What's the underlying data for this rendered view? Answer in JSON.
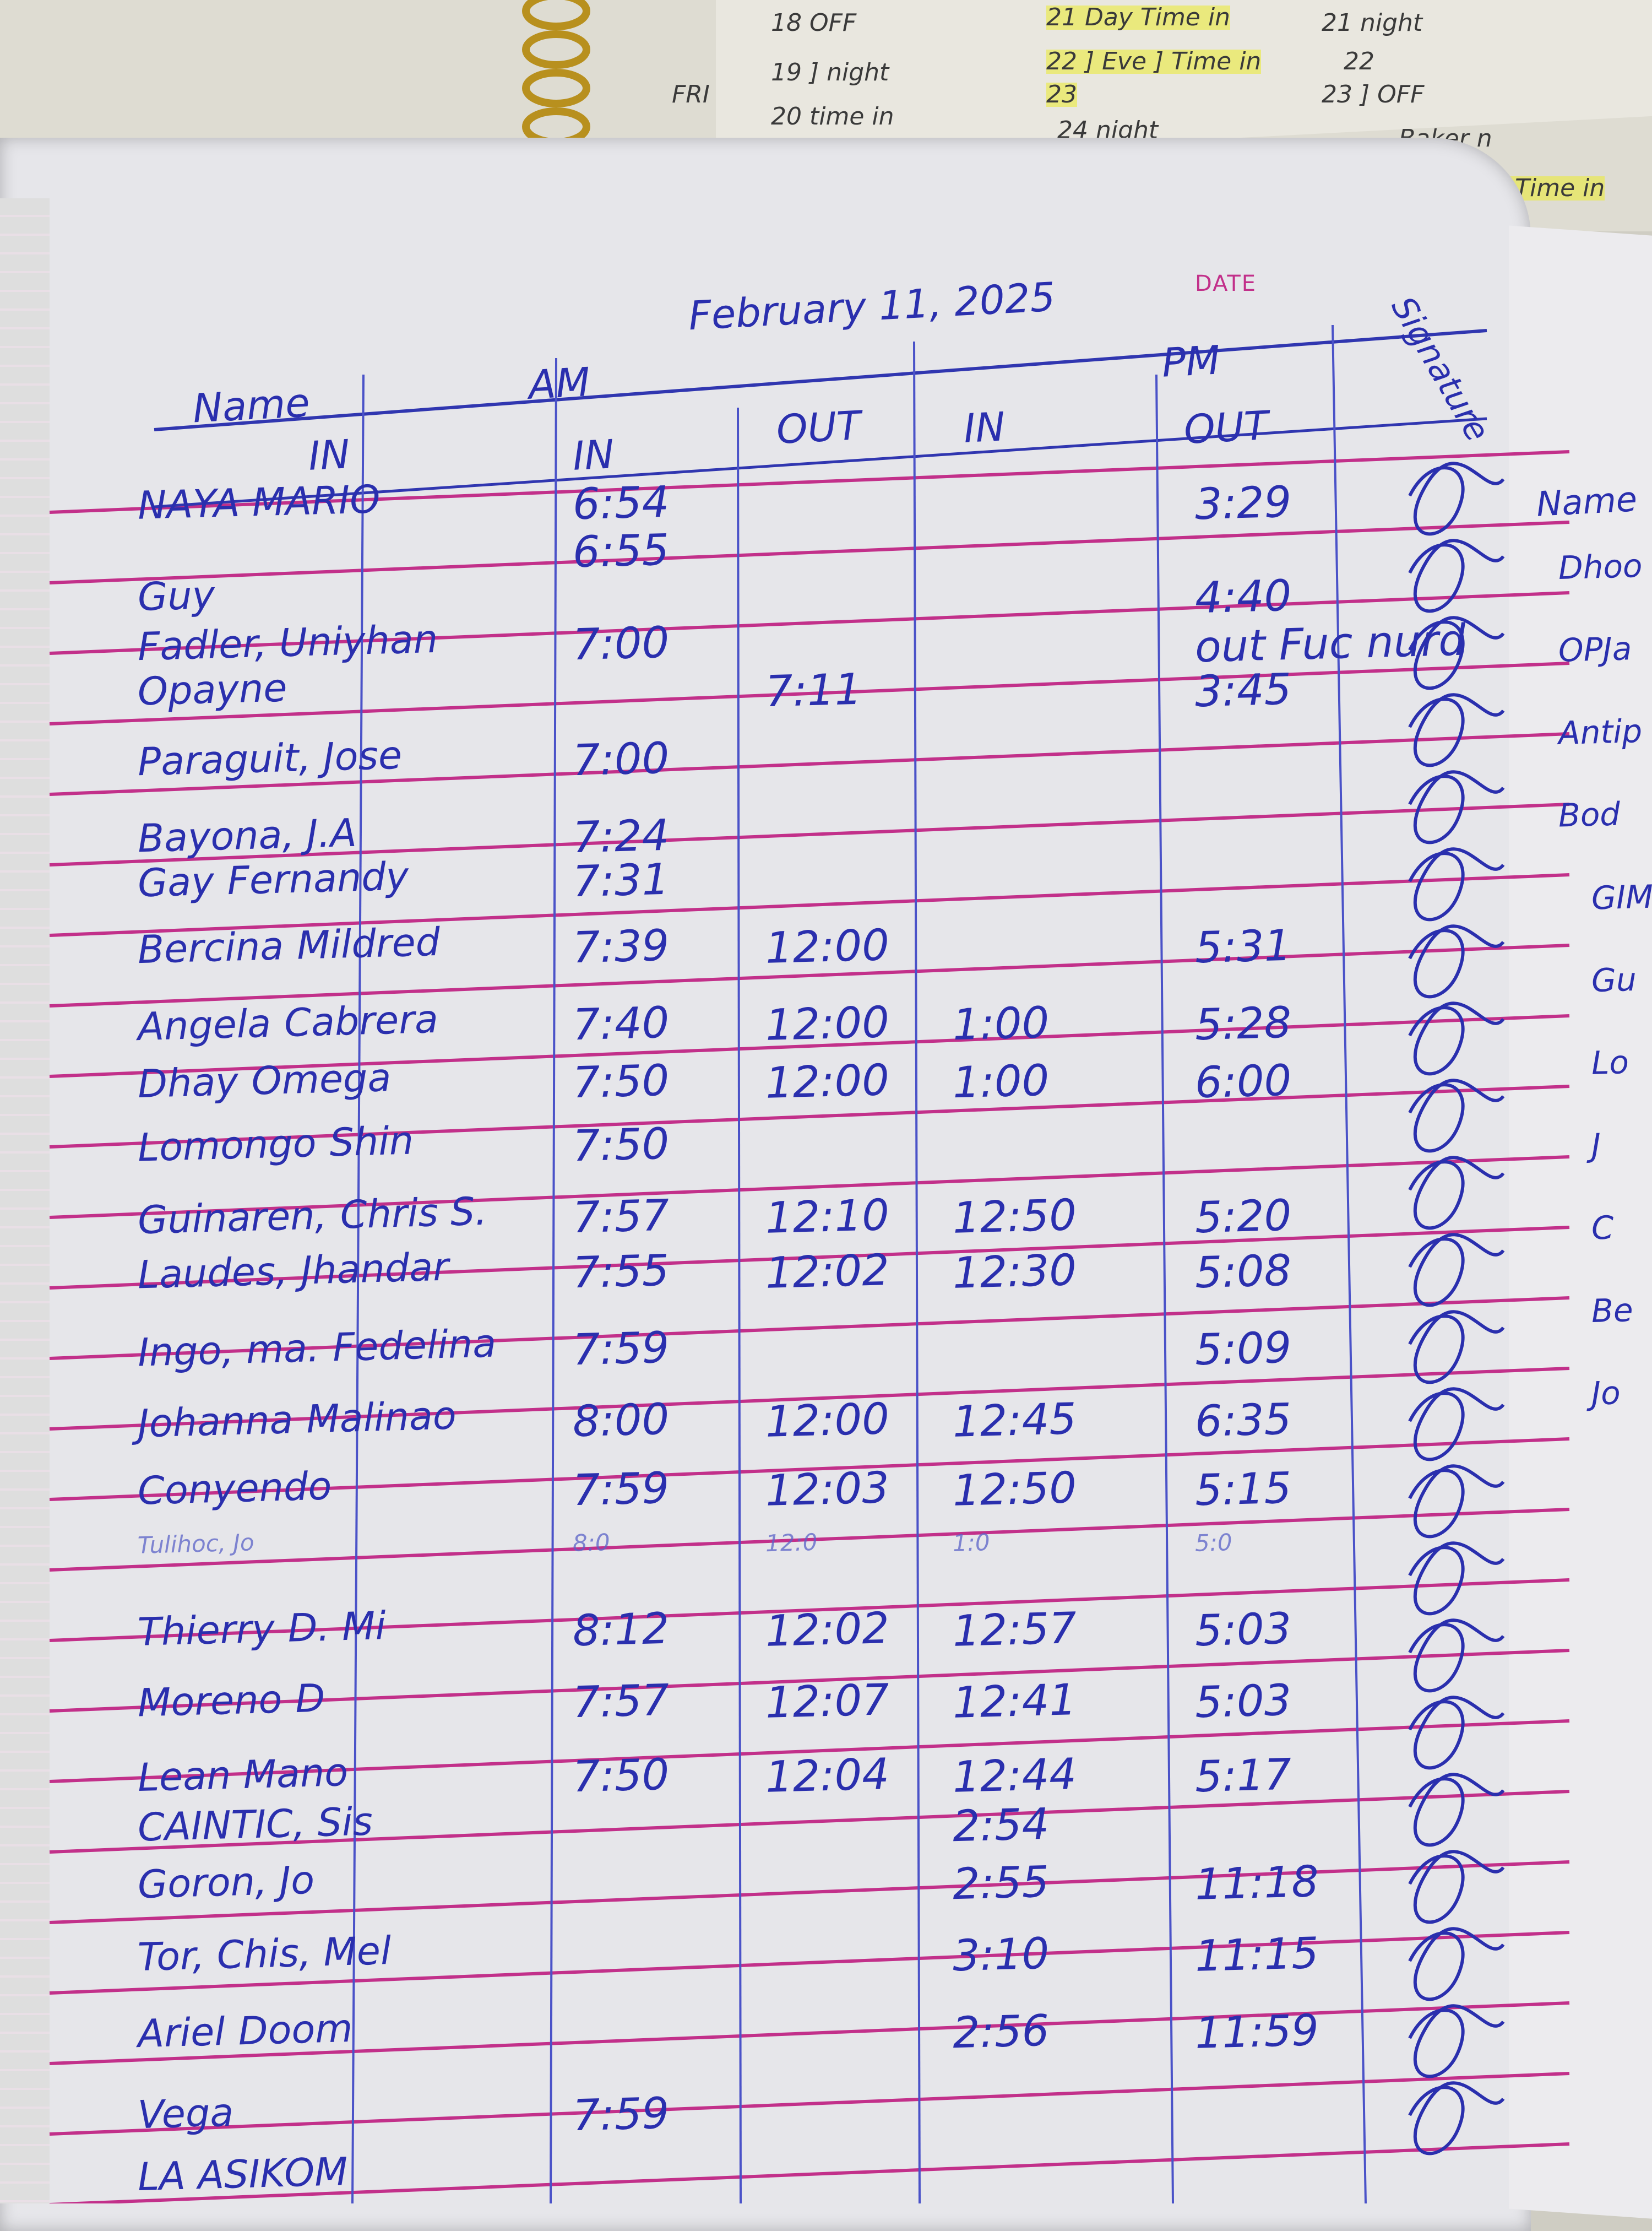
{
  "planner": {
    "day_label": "FRI",
    "entries": [
      {
        "text": "18 OFF",
        "hl": false
      },
      {
        "text": "19 ] night",
        "hl": false
      },
      {
        "text": "20 time in",
        "hl": false
      },
      {
        "text": "21 Day Time in",
        "hl": true
      },
      {
        "text": "22 ] Eve ] Time in",
        "hl": true
      },
      {
        "text": "23",
        "hl": true
      },
      {
        "text": "24 night",
        "hl": false
      },
      {
        "text": "21 night",
        "hl": false
      },
      {
        "text": "22",
        "hl": false
      },
      {
        "text": "23 ] OFF",
        "hl": false
      },
      {
        "text": "Baker n",
        "hl": false
      },
      {
        "text": "] Time in",
        "hl": true
      }
    ]
  },
  "logbook": {
    "date_label": "DATE",
    "date_written": "February 11, 2025",
    "headers": {
      "name": "Name",
      "am": "AM",
      "in_sub": "IN",
      "am_in": "IN",
      "am_out": "OUT",
      "pm": "PM",
      "pm_in": "IN",
      "pm_out": "OUT",
      "signature": "Signature"
    },
    "rows": [
      {
        "name": "NAYA MARIO",
        "name2": "",
        "am_in": "6:54",
        "am_out": "",
        "pm_in": "",
        "pm_out": "3:29"
      },
      {
        "name": "",
        "name2": "",
        "am_in": "6:55",
        "am_out": "",
        "pm_in": "",
        "pm_out": ""
      },
      {
        "name": "Guy",
        "name2": "",
        "am_in": "",
        "am_out": "",
        "pm_in": "",
        "pm_out": "4:40"
      },
      {
        "name": "Fadler, Uniyhan",
        "name2": "",
        "am_in": "7:00",
        "am_out": "",
        "pm_in": "",
        "pm_out": "out Fuc nurd"
      },
      {
        "name": "Opayne",
        "name2": "",
        "am_in": "",
        "am_out": "7:11",
        "pm_in": "",
        "pm_out": "3:45"
      },
      {
        "name": "Paraguit, Jose",
        "name2": "",
        "am_in": "7:00",
        "am_out": "",
        "pm_in": "",
        "pm_out": ""
      },
      {
        "name": "Bayona, J.A",
        "name2": "",
        "am_in": "7:24",
        "am_out": "",
        "pm_in": "",
        "pm_out": ""
      },
      {
        "name": "Gay",
        "name2": "Fernandy",
        "am_in": "7:31",
        "am_out": "",
        "pm_in": "",
        "pm_out": ""
      },
      {
        "name": "Bercina",
        "name2": "Mildred",
        "am_in": "7:39",
        "am_out": "12:00",
        "pm_in": "",
        "pm_out": "5:31"
      },
      {
        "name": "Angela",
        "name2": "Cabrera",
        "am_in": "7:40",
        "am_out": "12:00",
        "pm_in": "1:00",
        "pm_out": "5:28"
      },
      {
        "name": "Dhay",
        "name2": "Omega",
        "am_in": "7:50",
        "am_out": "12:00",
        "pm_in": "1:00",
        "pm_out": "6:00"
      },
      {
        "name": "Lomongo",
        "name2": "Shin",
        "am_in": "7:50",
        "am_out": "",
        "pm_in": "",
        "pm_out": ""
      },
      {
        "name": "Guinaren,",
        "name2": "Chris S.",
        "am_in": "7:57",
        "am_out": "12:10",
        "pm_in": "12:50",
        "pm_out": "5:20"
      },
      {
        "name": "Laudes,",
        "name2": "Jhandar",
        "am_in": "7:55",
        "am_out": "12:02",
        "pm_in": "12:30",
        "pm_out": "5:08"
      },
      {
        "name": "Ingo, ma.",
        "name2": "Fedelina",
        "am_in": "7:59",
        "am_out": "",
        "pm_in": "",
        "pm_out": "5:09"
      },
      {
        "name": "Johanna",
        "name2": "Malinao",
        "am_in": "8:00",
        "am_out": "12:00",
        "pm_in": "12:45",
        "pm_out": "6:35"
      },
      {
        "name": "Conyendo",
        "name2": "",
        "am_in": "7:59",
        "am_out": "12:03",
        "pm_in": "12:50",
        "pm_out": "5:15"
      },
      {
        "name": "Tulihoc, Jo",
        "name2": "",
        "am_in": "8:0",
        "am_out": "12:0",
        "pm_in": "1:0",
        "pm_out": "5:0"
      },
      {
        "name": "Thierry",
        "name2": "D. Mi",
        "am_in": "8:12",
        "am_out": "12:02",
        "pm_in": "12:57",
        "pm_out": "5:03"
      },
      {
        "name": "Moreno",
        "name2": "D",
        "am_in": "7:57",
        "am_out": "12:07",
        "pm_in": "12:41",
        "pm_out": "5:03"
      },
      {
        "name": "Lean Mano",
        "name2": "",
        "am_in": "7:50",
        "am_out": "12:04",
        "pm_in": "12:44",
        "pm_out": "5:17"
      },
      {
        "name": "CAINTIC, Sis",
        "name2": "",
        "am_in": "",
        "am_out": "",
        "pm_in": "2:54",
        "pm_out": ""
      },
      {
        "name": "Goron, Jo",
        "name2": "",
        "am_in": "",
        "am_out": "",
        "pm_in": "2:55",
        "pm_out": "11:18"
      },
      {
        "name": "Tor, Chis, Mel",
        "name2": "",
        "am_in": "",
        "am_out": "",
        "pm_in": "3:10",
        "pm_out": "11:15"
      },
      {
        "name": "Ariel",
        "name2": "Doom",
        "am_in": "",
        "am_out": "",
        "pm_in": "2:56",
        "pm_out": "11:59"
      },
      {
        "name": "Vega",
        "name2": "",
        "am_in": "7:59",
        "am_out": "",
        "pm_in": "",
        "pm_out": ""
      },
      {
        "name": "LA ASIKOM",
        "name2": "",
        "am_in": "",
        "am_out": "",
        "pm_in": "",
        "pm_out": ""
      }
    ]
  },
  "adjacent_page": {
    "header": "Name",
    "entries": [
      "Dhoo",
      "OPJa",
      "Antip",
      "Bod",
      "GIM",
      "Gu",
      "Lo",
      "J",
      "C",
      "Be",
      "Jo"
    ]
  },
  "colors": {
    "ink": "#2a2fae",
    "rule": "#c2308a",
    "paper": "#e6e6ea"
  }
}
